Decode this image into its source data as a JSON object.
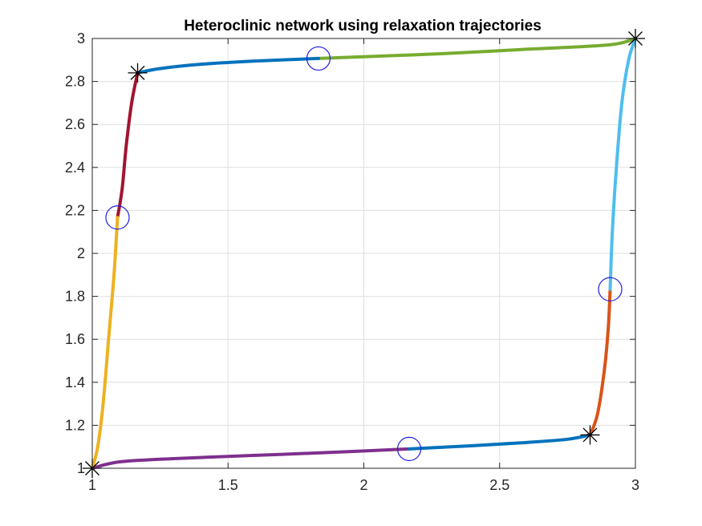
{
  "chart_data": {
    "type": "line",
    "title": "Heteroclinic network using relaxation trajectories",
    "xlabel": "",
    "ylabel": "",
    "xlim": [
      1,
      3
    ],
    "ylim": [
      1,
      3
    ],
    "xticks": [
      1,
      1.5,
      2,
      2.5,
      3
    ],
    "xtick_labels": [
      "1",
      "1.5",
      "2",
      "2.5",
      "3"
    ],
    "yticks": [
      1,
      1.2,
      1.4,
      1.6,
      1.8,
      2,
      2.2,
      2.4,
      2.6,
      2.8,
      3
    ],
    "ytick_labels": [
      "1",
      "1.2",
      "1.4",
      "1.6",
      "1.8",
      "2",
      "2.2",
      "2.4",
      "2.6",
      "2.8",
      "3"
    ],
    "grid": true,
    "series": [
      {
        "color": "#7E2F8E",
        "points": [
          [
            1.0,
            1.0
          ],
          [
            1.1,
            1.03
          ],
          [
            1.3,
            1.045
          ],
          [
            1.6,
            1.06
          ],
          [
            1.9,
            1.075
          ],
          [
            2.167,
            1.09
          ]
        ]
      },
      {
        "color": "#0072BD",
        "points": [
          [
            2.167,
            1.09
          ],
          [
            2.4,
            1.105
          ],
          [
            2.6,
            1.12
          ],
          [
            2.75,
            1.135
          ],
          [
            2.833,
            1.155
          ]
        ]
      },
      {
        "color": "#D95319",
        "points": [
          [
            2.833,
            1.155
          ],
          [
            2.86,
            1.25
          ],
          [
            2.885,
            1.45
          ],
          [
            2.9,
            1.65
          ],
          [
            2.907,
            1.833
          ]
        ]
      },
      {
        "color": "#4DBEEE",
        "points": [
          [
            2.907,
            1.833
          ],
          [
            2.915,
            2.1
          ],
          [
            2.93,
            2.4
          ],
          [
            2.95,
            2.7
          ],
          [
            2.975,
            2.9
          ],
          [
            3.0,
            3.0
          ]
        ]
      },
      {
        "color": "#77AC30",
        "points": [
          [
            3.0,
            3.0
          ],
          [
            2.9,
            2.97
          ],
          [
            2.6,
            2.95
          ],
          [
            2.3,
            2.93
          ],
          [
            2.0,
            2.915
          ],
          [
            1.833,
            2.907
          ]
        ]
      },
      {
        "color": "#0072BD",
        "points": [
          [
            1.833,
            2.907
          ],
          [
            1.6,
            2.895
          ],
          [
            1.4,
            2.88
          ],
          [
            1.25,
            2.86
          ],
          [
            1.167,
            2.84
          ]
        ]
      },
      {
        "color": "#A2142F",
        "points": [
          [
            1.167,
            2.84
          ],
          [
            1.145,
            2.7
          ],
          [
            1.125,
            2.5
          ],
          [
            1.11,
            2.3
          ],
          [
            1.093,
            2.167
          ]
        ]
      },
      {
        "color": "#EDB120",
        "points": [
          [
            1.093,
            2.167
          ],
          [
            1.08,
            1.9
          ],
          [
            1.06,
            1.6
          ],
          [
            1.04,
            1.3
          ],
          [
            1.02,
            1.1
          ],
          [
            1.0,
            1.0
          ]
        ]
      }
    ],
    "circle_markers": [
      {
        "x": 2.167,
        "y": 1.09
      },
      {
        "x": 2.907,
        "y": 1.833
      },
      {
        "x": 1.833,
        "y": 2.907
      },
      {
        "x": 1.093,
        "y": 2.167
      }
    ],
    "star_markers": [
      {
        "x": 1.0,
        "y": 1.0
      },
      {
        "x": 2.833,
        "y": 1.155
      },
      {
        "x": 3.0,
        "y": 3.0
      },
      {
        "x": 1.167,
        "y": 2.84
      }
    ],
    "colors": {
      "circle": "#1f1fe0",
      "star": "#000000",
      "grid": "#dfdfdf",
      "axis": "#262626"
    }
  }
}
